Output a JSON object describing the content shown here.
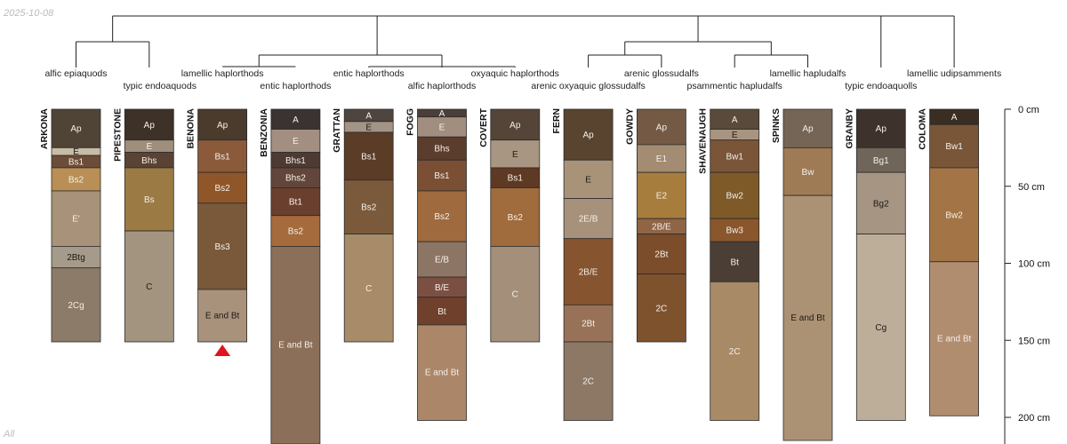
{
  "header": {
    "date_label": "2025-10-08"
  },
  "footer": {
    "group_label": "All"
  },
  "depth_axis": {
    "unit": "cm",
    "max_depth_cm": 220,
    "ticks": [
      {
        "value": 0,
        "label": "0 cm"
      },
      {
        "value": 50,
        "label": "50 cm"
      },
      {
        "value": 100,
        "label": "100 cm"
      },
      {
        "value": 150,
        "label": "150 cm"
      },
      {
        "value": 200,
        "label": "200 cm"
      }
    ]
  },
  "truncation_marker": {
    "profile": "BENONA",
    "color": "#e0141c"
  },
  "profiles": [
    {
      "name": "ARKONA",
      "taxon": "alfic epiaquods",
      "horizons": [
        {
          "name": "Ap",
          "top": 0,
          "bottom": 25,
          "color": "#4f4436"
        },
        {
          "name": "E",
          "top": 25,
          "bottom": 30,
          "color": "#c9bca6"
        },
        {
          "name": "Bs1",
          "top": 30,
          "bottom": 38,
          "color": "#6d4c39"
        },
        {
          "name": "Bs2",
          "top": 38,
          "bottom": 53,
          "color": "#b98f55"
        },
        {
          "name": "E'",
          "top": 53,
          "bottom": 89,
          "color": "#a8927a"
        },
        {
          "name": "2Btg",
          "top": 89,
          "bottom": 103,
          "color": "#a69a8a"
        },
        {
          "name": "2Cg",
          "top": 103,
          "bottom": 151,
          "color": "#8c7b69"
        }
      ]
    },
    {
      "name": "PIPESTONE",
      "taxon": "typic endoaquods",
      "horizons": [
        {
          "name": "Ap",
          "top": 0,
          "bottom": 20,
          "color": "#3d3128"
        },
        {
          "name": "E",
          "top": 20,
          "bottom": 28,
          "color": "#9f8e7b"
        },
        {
          "name": "Bhs",
          "top": 28,
          "bottom": 38,
          "color": "#5a4334"
        },
        {
          "name": "Bs",
          "top": 38,
          "bottom": 79,
          "color": "#9b7a44"
        },
        {
          "name": "C",
          "top": 79,
          "bottom": 151,
          "color": "#a39480"
        }
      ]
    },
    {
      "name": "BENONA",
      "taxon": "lamellic haplorthods",
      "horizons": [
        {
          "name": "Ap",
          "top": 0,
          "bottom": 20,
          "color": "#4a3b2d"
        },
        {
          "name": "Bs1",
          "top": 20,
          "bottom": 41,
          "color": "#8a5a3a"
        },
        {
          "name": "Bs2",
          "top": 41,
          "bottom": 61,
          "color": "#8f5629"
        },
        {
          "name": "Bs3",
          "top": 61,
          "bottom": 117,
          "color": "#79593a"
        },
        {
          "name": "E and Bt",
          "top": 117,
          "bottom": 151,
          "color": "#a8927c"
        }
      ]
    },
    {
      "name": "BENZONIA",
      "taxon": "entic haplorthods",
      "horizons": [
        {
          "name": "A",
          "top": 0,
          "bottom": 13,
          "color": "#3b3332"
        },
        {
          "name": "E",
          "top": 13,
          "bottom": 28,
          "color": "#a38e82"
        },
        {
          "name": "Bhs1",
          "top": 28,
          "bottom": 38,
          "color": "#4c3a33"
        },
        {
          "name": "Bhs2",
          "top": 38,
          "bottom": 51,
          "color": "#62463b"
        },
        {
          "name": "Bt1",
          "top": 51,
          "bottom": 69,
          "color": "#6b3f2e"
        },
        {
          "name": "Bs2",
          "top": 69,
          "bottom": 89,
          "color": "#a66b3c"
        },
        {
          "name": "E and Bt",
          "top": 89,
          "bottom": 220,
          "color": "#8b6f58"
        }
      ]
    },
    {
      "name": "GRATTAN",
      "taxon": "entic haplorthods",
      "horizons": [
        {
          "name": "A",
          "top": 0,
          "bottom": 8,
          "color": "#4f4540"
        },
        {
          "name": "E",
          "top": 8,
          "bottom": 15,
          "color": "#a39485"
        },
        {
          "name": "Bs1",
          "top": 15,
          "bottom": 46,
          "color": "#5b3c27"
        },
        {
          "name": "Bs2",
          "top": 46,
          "bottom": 81,
          "color": "#7b5a3b"
        },
        {
          "name": "C",
          "top": 81,
          "bottom": 151,
          "color": "#a88c69"
        }
      ]
    },
    {
      "name": "FOGG",
      "taxon": "alfic haplorthods",
      "horizons": [
        {
          "name": "A",
          "top": 0,
          "bottom": 5,
          "color": "#4a3e38"
        },
        {
          "name": "E",
          "top": 5,
          "bottom": 18,
          "color": "#a28e7e"
        },
        {
          "name": "Bhs",
          "top": 18,
          "bottom": 33,
          "color": "#5b3d2e"
        },
        {
          "name": "Bs1",
          "top": 33,
          "bottom": 53,
          "color": "#7b4f33"
        },
        {
          "name": "Bs2",
          "top": 53,
          "bottom": 86,
          "color": "#9e6a3e"
        },
        {
          "name": "E/B",
          "top": 86,
          "bottom": 109,
          "color": "#8c7565"
        },
        {
          "name": "B/E",
          "top": 109,
          "bottom": 122,
          "color": "#7b5043"
        },
        {
          "name": "Bt",
          "top": 122,
          "bottom": 140,
          "color": "#6f412d"
        },
        {
          "name": "E and Bt",
          "top": 140,
          "bottom": 202,
          "color": "#ac8668"
        }
      ]
    },
    {
      "name": "COVERT",
      "taxon": "oxyaquic haplorthods",
      "horizons": [
        {
          "name": "Ap",
          "top": 0,
          "bottom": 20,
          "color": "#544538"
        },
        {
          "name": "E",
          "top": 20,
          "bottom": 38,
          "color": "#a99682"
        },
        {
          "name": "Bs1",
          "top": 38,
          "bottom": 51,
          "color": "#5e3923"
        },
        {
          "name": "Bs2",
          "top": 51,
          "bottom": 89,
          "color": "#a06b3d"
        },
        {
          "name": "C",
          "top": 89,
          "bottom": 151,
          "color": "#a38f7a"
        }
      ]
    },
    {
      "name": "FERN",
      "taxon": "arenic oxyaquic glossudalfs",
      "horizons": [
        {
          "name": "Ap",
          "top": 0,
          "bottom": 33,
          "color": "#59442f"
        },
        {
          "name": "E",
          "top": 33,
          "bottom": 58,
          "color": "#a89378"
        },
        {
          "name": "2E/B",
          "top": 58,
          "bottom": 84,
          "color": "#a8917b"
        },
        {
          "name": "2B/E",
          "top": 84,
          "bottom": 127,
          "color": "#86542f"
        },
        {
          "name": "2Bt",
          "top": 127,
          "bottom": 151,
          "color": "#977258"
        },
        {
          "name": "2C",
          "top": 151,
          "bottom": 202,
          "color": "#8d7866"
        }
      ]
    },
    {
      "name": "GOWDY",
      "taxon": "arenic glossudalfs",
      "horizons": [
        {
          "name": "Ap",
          "top": 0,
          "bottom": 23,
          "color": "#745a45"
        },
        {
          "name": "E1",
          "top": 23,
          "bottom": 41,
          "color": "#a38c71"
        },
        {
          "name": "E2",
          "top": 41,
          "bottom": 71,
          "color": "#a77d3e"
        },
        {
          "name": "2B/E",
          "top": 71,
          "bottom": 81,
          "color": "#8f6546"
        },
        {
          "name": "2Bt",
          "top": 81,
          "bottom": 107,
          "color": "#7b4d2b"
        },
        {
          "name": "2C",
          "top": 107,
          "bottom": 151,
          "color": "#7f522e"
        }
      ]
    },
    {
      "name": "SHAVENAUGH",
      "taxon": "psammentic hapludalfs",
      "horizons": [
        {
          "name": "A",
          "top": 0,
          "bottom": 13,
          "color": "#5a4a3b"
        },
        {
          "name": "E",
          "top": 13,
          "bottom": 20,
          "color": "#a89581"
        },
        {
          "name": "Bw1",
          "top": 20,
          "bottom": 41,
          "color": "#7a5537"
        },
        {
          "name": "Bw2",
          "top": 41,
          "bottom": 71,
          "color": "#7d5a28"
        },
        {
          "name": "Bw3",
          "top": 71,
          "bottom": 86,
          "color": "#8a562c"
        },
        {
          "name": "Bt",
          "top": 86,
          "bottom": 112,
          "color": "#4b3f35"
        },
        {
          "name": "2C",
          "top": 112,
          "bottom": 202,
          "color": "#a88a67"
        }
      ]
    },
    {
      "name": "SPINKS",
      "taxon": "lamellic hapludalfs",
      "horizons": [
        {
          "name": "Ap",
          "top": 0,
          "bottom": 25,
          "color": "#756557"
        },
        {
          "name": "Bw",
          "top": 25,
          "bottom": 56,
          "color": "#9f7b55"
        },
        {
          "name": "E and Bt",
          "top": 56,
          "bottom": 215,
          "color": "#ab9274"
        }
      ]
    },
    {
      "name": "GRANBY",
      "taxon": "typic endoaquolls",
      "horizons": [
        {
          "name": "Ap",
          "top": 0,
          "bottom": 25,
          "color": "#3e332c"
        },
        {
          "name": "Bg1",
          "top": 25,
          "bottom": 41,
          "color": "#6f6559"
        },
        {
          "name": "Bg2",
          "top": 41,
          "bottom": 81,
          "color": "#a69582"
        },
        {
          "name": "Cg",
          "top": 81,
          "bottom": 202,
          "color": "#bdae9a"
        }
      ]
    },
    {
      "name": "COLOMA",
      "taxon": "lamellic udipsamments",
      "horizons": [
        {
          "name": "A",
          "top": 0,
          "bottom": 10,
          "color": "#3a2d22"
        },
        {
          "name": "Bw1",
          "top": 10,
          "bottom": 38,
          "color": "#7a5638"
        },
        {
          "name": "Bw2",
          "top": 38,
          "bottom": 99,
          "color": "#a37546"
        },
        {
          "name": "E and Bt",
          "top": 99,
          "bottom": 199,
          "color": "#b18d70"
        }
      ]
    }
  ]
}
